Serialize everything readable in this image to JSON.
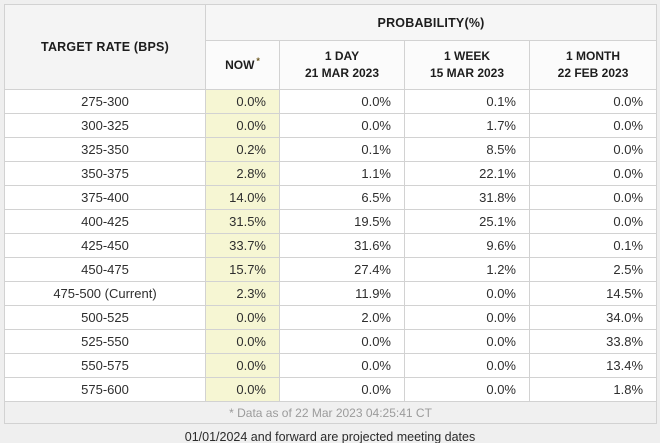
{
  "headers": {
    "target_rate": "TARGET RATE (BPS)",
    "probability": "PROBABILITY(%)",
    "now_label": "NOW",
    "now_asterisk": "*",
    "cols": [
      {
        "period": "1 DAY",
        "date": "21 MAR 2023"
      },
      {
        "period": "1 WEEK",
        "date": "15 MAR 2023"
      },
      {
        "period": "1 MONTH",
        "date": "22 FEB 2023"
      }
    ]
  },
  "table": {
    "rows": [
      {
        "rate": "275-300",
        "now": "0.0%",
        "day": "0.0%",
        "week": "0.1%",
        "month": "0.0%"
      },
      {
        "rate": "300-325",
        "now": "0.0%",
        "day": "0.0%",
        "week": "1.7%",
        "month": "0.0%"
      },
      {
        "rate": "325-350",
        "now": "0.2%",
        "day": "0.1%",
        "week": "8.5%",
        "month": "0.0%"
      },
      {
        "rate": "350-375",
        "now": "2.8%",
        "day": "1.1%",
        "week": "22.1%",
        "month": "0.0%"
      },
      {
        "rate": "375-400",
        "now": "14.0%",
        "day": "6.5%",
        "week": "31.8%",
        "month": "0.0%"
      },
      {
        "rate": "400-425",
        "now": "31.5%",
        "day": "19.5%",
        "week": "25.1%",
        "month": "0.0%"
      },
      {
        "rate": "425-450",
        "now": "33.7%",
        "day": "31.6%",
        "week": "9.6%",
        "month": "0.1%"
      },
      {
        "rate": "450-475",
        "now": "15.7%",
        "day": "27.4%",
        "week": "1.2%",
        "month": "2.5%"
      },
      {
        "rate": "475-500 (Current)",
        "now": "2.3%",
        "day": "11.9%",
        "week": "0.0%",
        "month": "14.5%"
      },
      {
        "rate": "500-525",
        "now": "0.0%",
        "day": "2.0%",
        "week": "0.0%",
        "month": "34.0%"
      },
      {
        "rate": "525-550",
        "now": "0.0%",
        "day": "0.0%",
        "week": "0.0%",
        "month": "33.8%"
      },
      {
        "rate": "550-575",
        "now": "0.0%",
        "day": "0.0%",
        "week": "0.0%",
        "month": "13.4%"
      },
      {
        "rate": "575-600",
        "now": "0.0%",
        "day": "0.0%",
        "week": "0.0%",
        "month": "1.8%"
      }
    ],
    "footnote": "* Data as of 22 Mar 2023 04:25:41 CT"
  },
  "page": {
    "below_note": "01/01/2024 and forward are projected meeting dates"
  },
  "colors": {
    "now_column_bg": "#f6f6d3",
    "header_bg": "#f4f4f4",
    "border": "#d2d2d2",
    "page_bg": "#efefef",
    "footnote_text": "#9b9b9b"
  },
  "chart_data": {
    "type": "table",
    "title": "PROBABILITY(%)",
    "row_label": "TARGET RATE (BPS)",
    "unit": "%",
    "categories": [
      "275-300",
      "300-325",
      "325-350",
      "350-375",
      "375-400",
      "400-425",
      "425-450",
      "450-475",
      "475-500 (Current)",
      "500-525",
      "525-550",
      "550-575",
      "575-600"
    ],
    "series": [
      {
        "name": "NOW",
        "values": [
          0.0,
          0.0,
          0.2,
          2.8,
          14.0,
          31.5,
          33.7,
          15.7,
          2.3,
          0.0,
          0.0,
          0.0,
          0.0
        ]
      },
      {
        "name": "1 DAY 21 MAR 2023",
        "values": [
          0.0,
          0.0,
          0.1,
          1.1,
          6.5,
          19.5,
          31.6,
          27.4,
          11.9,
          2.0,
          0.0,
          0.0,
          0.0
        ]
      },
      {
        "name": "1 WEEK 15 MAR 2023",
        "values": [
          0.1,
          1.7,
          8.5,
          22.1,
          31.8,
          25.1,
          9.6,
          1.2,
          0.0,
          0.0,
          0.0,
          0.0,
          0.0
        ]
      },
      {
        "name": "1 MONTH 22 FEB 2023",
        "values": [
          0.0,
          0.0,
          0.0,
          0.0,
          0.0,
          0.0,
          0.1,
          2.5,
          14.5,
          34.0,
          33.8,
          13.4,
          1.8
        ]
      }
    ],
    "footnote": "* Data as of 22 Mar 2023 04:25:41 CT",
    "note": "01/01/2024 and forward are projected meeting dates"
  }
}
